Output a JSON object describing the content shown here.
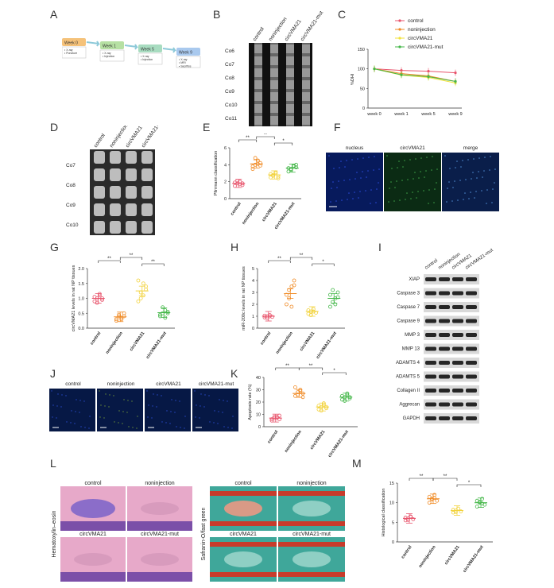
{
  "letters": [
    "A",
    "B",
    "C",
    "D",
    "E",
    "F",
    "G",
    "H",
    "I",
    "J",
    "K",
    "L",
    "M"
  ],
  "panelA": {
    "steps": [
      {
        "title": "Week 0",
        "items": [
          "X-ray",
          "Puncture"
        ],
        "color": "#f5c27a"
      },
      {
        "title": "Week 1",
        "items": [
          "X-ray",
          "Injection"
        ],
        "color": "#b6e0a3"
      },
      {
        "title": "Week 5",
        "items": [
          "X-ray",
          "Injection"
        ],
        "color": "#a8dcc0"
      },
      {
        "title": "Week 9",
        "items": [
          "X-ray",
          "MRI",
          "Sacrifice"
        ],
        "color": "#a9c9ee"
      }
    ]
  },
  "panelB": {
    "groups": [
      "control",
      "noninjection",
      "circVMA21",
      "circVMA21-mut"
    ],
    "levels": [
      "Co6",
      "Co7",
      "Co8",
      "Co9",
      "Co10",
      "Co11"
    ]
  },
  "panelC": {
    "ylabel": "%DHI",
    "legend": [
      {
        "name": "control",
        "color": "#e8546c"
      },
      {
        "name": "noninjection",
        "color": "#f08a24"
      },
      {
        "name": "circVMA21",
        "color": "#f2e23a"
      },
      {
        "name": "circVMA21-mut",
        "color": "#44b749"
      }
    ]
  },
  "panelD": {
    "groups": [
      "control",
      "noninjection",
      "circVMA21",
      "circVMA21-mut"
    ],
    "levels": [
      "Co7",
      "Co8",
      "Co9",
      "Co10"
    ]
  },
  "panelF": {
    "titles": [
      "nucleus",
      "circVMA21",
      "merge"
    ]
  },
  "panelI": {
    "groups": [
      "control",
      "noninjection",
      "circVMA21",
      "circVMA21-mut"
    ],
    "proteins": [
      "XIAP",
      "Caspase 3",
      "Caspase 7",
      "Caspase 9",
      "MMP 3",
      "MMP 13",
      "ADAMTS 4",
      "ADAMTS 5",
      "Collagen II",
      "Aggrecan",
      "GAPDH"
    ]
  },
  "panelJ": {
    "titles": [
      "control",
      "noninjection",
      "circVMA21",
      "circVMA21-mut"
    ]
  },
  "panelL": {
    "stain1": "Hematoxylin–eosin",
    "stain2": "Safranin-O/fast green",
    "titles": [
      "control",
      "noninjection",
      "circVMA21",
      "circVMA21-mut"
    ]
  },
  "chart_data": [
    {
      "panel": "C",
      "type": "line",
      "ylabel": "%DHI",
      "categories": [
        "week 0",
        "week 1",
        "week 5",
        "week 9"
      ],
      "ylim": [
        0,
        150
      ],
      "yticks": [
        0,
        50,
        100,
        150
      ],
      "series": [
        {
          "name": "control",
          "color": "#e8546c",
          "values": [
            100,
            96,
            94,
            90
          ]
        },
        {
          "name": "noninjection",
          "color": "#f08a24",
          "values": [
            100,
            88,
            82,
            68
          ]
        },
        {
          "name": "circVMA21",
          "color": "#f2e23a",
          "values": [
            100,
            84,
            78,
            64
          ]
        },
        {
          "name": "circVMA21-mut",
          "color": "#44b749",
          "values": [
            100,
            85,
            80,
            68
          ]
        }
      ]
    },
    {
      "panel": "E",
      "type": "scatter",
      "ylabel": "Pfirrmann classification",
      "categories": [
        "control",
        "noninjection",
        "circVMA21",
        "circVMA21-mut"
      ],
      "ylim": [
        0,
        6
      ],
      "yticks": [
        0,
        2,
        4,
        6
      ],
      "colors": [
        "#e8546c",
        "#f08a24",
        "#f2d23a",
        "#44b749"
      ],
      "values": [
        [
          1.5,
          1.8,
          2.0,
          1.6,
          1.9,
          2.1,
          1.7,
          1.8
        ],
        [
          3.5,
          4.0,
          4.5,
          4.2,
          3.8,
          4.8,
          4.1,
          3.9
        ],
        [
          2.5,
          2.8,
          3.0,
          2.6,
          2.9,
          2.7,
          3.1,
          2.4
        ],
        [
          3.2,
          3.5,
          3.8,
          4.0,
          3.6,
          3.4,
          3.9,
          3.7
        ]
      ],
      "means": [
        1.8,
        4.1,
        2.8,
        3.6
      ],
      "significance": [
        "**",
        "**",
        "*"
      ]
    },
    {
      "panel": "G",
      "type": "scatter",
      "ylabel": "circVMA21 levels in rat NP tissues",
      "categories": [
        "control",
        "noninjection",
        "circVMA21",
        "circVMA21-mut"
      ],
      "ylim": [
        0.0,
        2.0
      ],
      "yticks": [
        0.0,
        0.5,
        1.0,
        1.5,
        2.0
      ],
      "colors": [
        "#e8546c",
        "#f08a24",
        "#f2d23a",
        "#44b749"
      ],
      "values": [
        [
          0.9,
          1.0,
          1.1,
          0.95,
          1.05,
          0.85,
          1.15,
          1.0
        ],
        [
          0.3,
          0.4,
          0.35,
          0.5,
          0.25,
          0.45,
          0.3,
          0.4
        ],
        [
          0.9,
          1.2,
          1.5,
          1.3,
          1.6,
          1.0,
          1.1,
          1.4
        ],
        [
          0.4,
          0.5,
          0.6,
          0.55,
          0.45,
          0.7,
          0.35,
          0.5
        ]
      ],
      "means": [
        1.0,
        0.38,
        1.25,
        0.52
      ],
      "significance": [
        "**",
        "**",
        "**"
      ]
    },
    {
      "panel": "H",
      "type": "scatter",
      "ylabel": "miR-200c levels in rat NP tissues",
      "categories": [
        "control",
        "noninjection",
        "circVMA21",
        "circVMA21-mut"
      ],
      "ylim": [
        0,
        5
      ],
      "yticks": [
        0,
        1,
        2,
        3,
        4,
        5
      ],
      "colors": [
        "#e8546c",
        "#f08a24",
        "#f2d23a",
        "#44b749"
      ],
      "values": [
        [
          0.9,
          1.0,
          1.1,
          0.95,
          1.05,
          0.85,
          1.0
        ],
        [
          2.0,
          2.5,
          3.5,
          4.0,
          2.8,
          3.2,
          1.8,
          3.6
        ],
        [
          1.2,
          1.4,
          1.6,
          1.3,
          1.5,
          1.1,
          1.4
        ],
        [
          1.8,
          2.2,
          2.5,
          3.0,
          2.8,
          3.2,
          2.0,
          2.6
        ]
      ],
      "means": [
        1.0,
        2.9,
        1.4,
        2.5
      ],
      "significance": [
        "**",
        "**",
        "*"
      ]
    },
    {
      "panel": "K",
      "type": "scatter",
      "ylabel": "Apoptosis rate (%)",
      "categories": [
        "control",
        "noninjection",
        "circVMA21",
        "circVMA21-mut"
      ],
      "ylim": [
        0,
        40
      ],
      "yticks": [
        0,
        10,
        20,
        30,
        40
      ],
      "colors": [
        "#e8546c",
        "#f08a24",
        "#f2d23a",
        "#44b749"
      ],
      "values": [
        [
          6,
          8,
          7,
          9,
          5,
          7,
          8,
          6
        ],
        [
          25,
          28,
          30,
          27,
          32,
          26,
          29,
          24
        ],
        [
          14,
          16,
          18,
          15,
          17,
          13,
          19,
          16
        ],
        [
          22,
          24,
          26,
          23,
          25,
          21,
          27,
          24
        ]
      ],
      "means": [
        7,
        27,
        16,
        24
      ],
      "significance": [
        "**",
        "**",
        "*"
      ]
    },
    {
      "panel": "M",
      "type": "scatter",
      "ylabel": "Histological classification",
      "categories": [
        "control",
        "noninjection",
        "circVMA21",
        "circVMA21-mut"
      ],
      "ylim": [
        0,
        15
      ],
      "yticks": [
        0,
        5,
        10,
        15
      ],
      "colors": [
        "#e8546c",
        "#f08a24",
        "#f2d23a",
        "#44b749"
      ],
      "values": [
        [
          5.5,
          6.0,
          6.5,
          5.8,
          6.2,
          5.6,
          6.4
        ],
        [
          10,
          11,
          12,
          10.5,
          11.5,
          10.8,
          11.2
        ],
        [
          7.5,
          8.0,
          8.5,
          7.8,
          8.2,
          7.6
        ],
        [
          9,
          10,
          11,
          9.5,
          10.5,
          10.2,
          9.8
        ]
      ],
      "means": [
        6.0,
        11.0,
        8.0,
        10.0
      ],
      "significance": [
        "**",
        "**",
        "*"
      ]
    }
  ]
}
